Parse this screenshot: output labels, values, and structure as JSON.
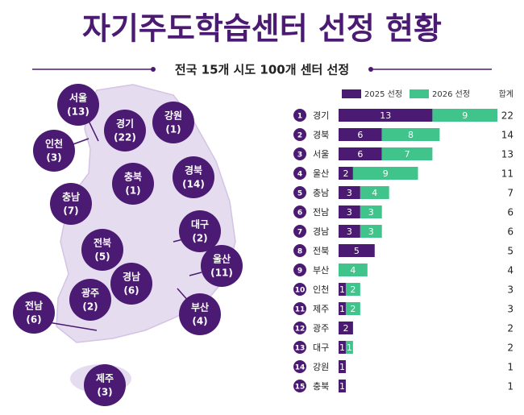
{
  "chart_data": {
    "type": "stacked-barh",
    "title": "자기주도학습센터 선정 현황",
    "subtitle": "전국 15개 시도 100개 센터 선정",
    "ranks": [
      1,
      2,
      3,
      4,
      5,
      6,
      7,
      8,
      9,
      10,
      11,
      12,
      13,
      14,
      15
    ],
    "categories": [
      "경기",
      "경북",
      "서울",
      "울산",
      "충남",
      "전남",
      "경남",
      "전북",
      "부산",
      "인천",
      "제주",
      "광주",
      "대구",
      "강원",
      "충북"
    ],
    "series": [
      {
        "name": "2025 선정",
        "color": "#4b1a72",
        "values": [
          13,
          6,
          6,
          2,
          3,
          3,
          3,
          5,
          null,
          1,
          1,
          2,
          1,
          1,
          1
        ]
      },
      {
        "name": "2026 선정",
        "color": "#41c48c",
        "values": [
          9,
          8,
          7,
          9,
          4,
          3,
          3,
          null,
          4,
          2,
          2,
          null,
          1,
          null,
          null
        ]
      }
    ],
    "total_label": "합계",
    "totals": [
      22,
      14,
      13,
      11,
      7,
      6,
      6,
      5,
      4,
      3,
      3,
      2,
      2,
      1,
      1
    ],
    "xlim": [
      0,
      22
    ]
  },
  "map": {
    "regions": [
      {
        "name": "서울",
        "count": "(13)"
      },
      {
        "name": "강원",
        "count": "(1)"
      },
      {
        "name": "경기",
        "count": "(22)"
      },
      {
        "name": "인천",
        "count": "(3)"
      },
      {
        "name": "충북",
        "count": "(1)"
      },
      {
        "name": "경북",
        "count": "(14)"
      },
      {
        "name": "충남",
        "count": "(7)"
      },
      {
        "name": "대구",
        "count": "(2)"
      },
      {
        "name": "전북",
        "count": "(5)"
      },
      {
        "name": "울산",
        "count": "(11)"
      },
      {
        "name": "경남",
        "count": "(6)"
      },
      {
        "name": "광주",
        "count": "(2)"
      },
      {
        "name": "부산",
        "count": "(4)"
      },
      {
        "name": "전남",
        "count": "(6)"
      },
      {
        "name": "제주",
        "count": "(3)"
      }
    ]
  }
}
